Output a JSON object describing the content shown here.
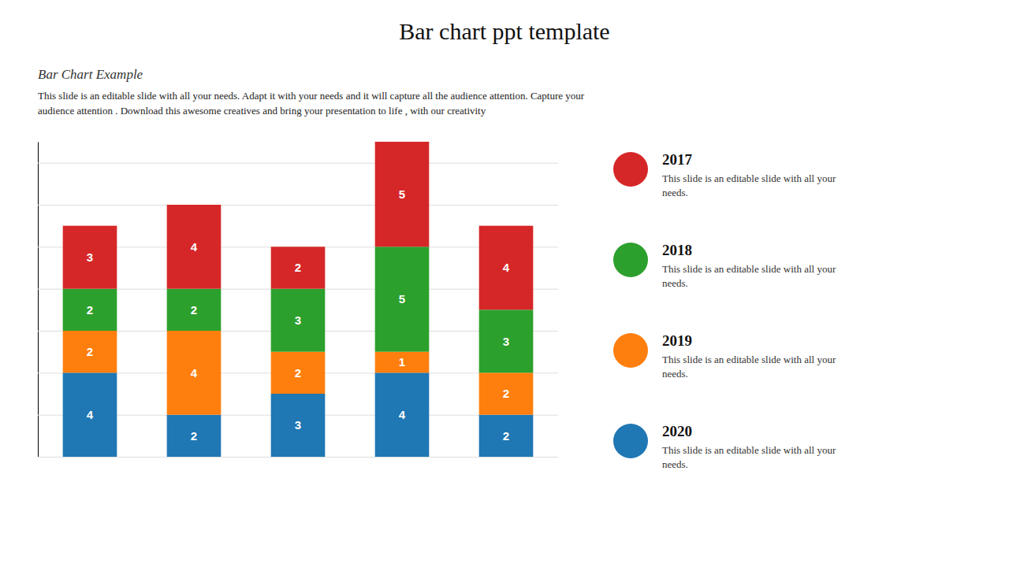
{
  "chart_data": {
    "type": "bar",
    "title": "Bar chart ppt template",
    "subtitle": "Bar Chart Example",
    "annotations": [
      "This slide is an editable slide with all your needs. Adapt it with your needs and it will capture all the audience attention. Capture your",
      "audience attention . Download this awesome creatives and bring your presentation to life , with our creativity",
      "This slide is an editable slide with all your\nneeds."
    ],
    "categories": [
      null,
      null,
      null,
      null,
      null
    ],
    "series": [
      {
        "name": "2020",
        "values": [
          4,
          2,
          3,
          4,
          2
        ]
      },
      {
        "name": "2019",
        "values": [
          2,
          4,
          2,
          1,
          2
        ]
      },
      {
        "name": "2018",
        "values": [
          2,
          2,
          3,
          5,
          3
        ]
      },
      {
        "name": "2017",
        "values": [
          3,
          4,
          2,
          5,
          4
        ]
      }
    ],
    "stacked": true,
    "data_labels": true,
    "ylim": [
      0,
      15
    ],
    "yticks": [
      0,
      2,
      4,
      6,
      8,
      10,
      12,
      14
    ],
    "grid": true,
    "tick_labels": false,
    "legend": "right"
  }
}
